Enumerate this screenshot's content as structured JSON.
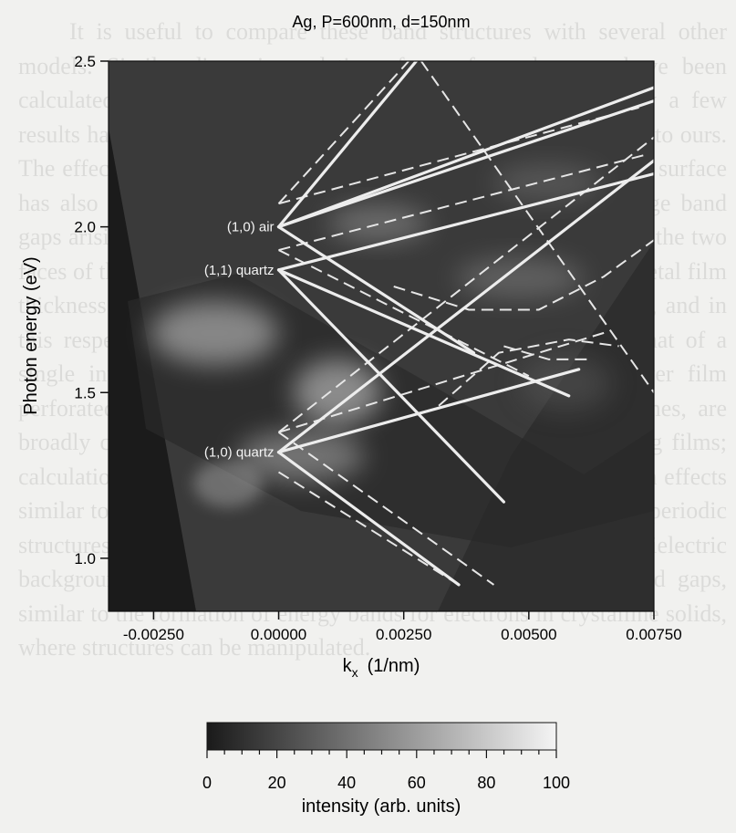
{
  "page_text": "It is useful to compare these band structures with several other models. Similar dispersion relations for surface plasmons have been calculated for metal gratings with sinusoidal profiles, but only a few results have been reported for the structures geometrically similar to ours. The effect of waveguide modes in dielectric media near the metal surface has also been suggested as supported by the observation of large band gaps arising from strong coupling between the plasmon modes on the two faces of the metal. We find that the gaps depend strongly on the metal film thickness (gaps are much smaller for thicker films, d = 300 nm), and in this respect the band structure is qualitatively different from that of a single interface. The computed transmission spectra of a silver film perforated with an array of holes, in different absorption regimes, are broadly consistent with those modelled with perfectly conducting films; calculations on arrays of gold wires and nanoparticles have shown effects similar to our findings. The concept of photonic band structure in periodic structures are presented at the top of many reviews. Periodic dielectric backgrounds lead to the formation of photonic bands and band gaps, similar to the formation of energy bands for electrons in crystalline solids, where structures can be manipulated.",
  "chart_data": {
    "type": "heatmap",
    "title": "Ag, P=600nm, d=150nm",
    "xlabel": "k",
    "xlabel_subscript": "x",
    "xlabel_unit": "(1/nm)",
    "ylabel": "Photon energy (eV)",
    "xlim": [
      -0.0034,
      0.0075
    ],
    "ylim": [
      0.84,
      2.5
    ],
    "x_ticks": [
      -0.0025,
      0.0,
      0.0025,
      0.005,
      0.0075
    ],
    "x_tick_labels": [
      "-0.00250",
      "0.00000",
      "0.00250",
      "0.00500",
      "0.00750"
    ],
    "y_ticks": [
      1.0,
      1.5,
      2.0,
      2.5
    ],
    "y_tick_labels": [
      "1.0",
      "1.5",
      "2.0",
      "2.5"
    ],
    "annotations": [
      {
        "text": "(1,0) air",
        "x": 0.0,
        "y": 2.0
      },
      {
        "text": "(1,1) quartz",
        "x": 0.0,
        "y": 1.87
      },
      {
        "text": "(1,0) quartz",
        "x": 0.0,
        "y": 1.32
      }
    ],
    "solid_lines": [
      [
        [
          0.0,
          2.0
        ],
        [
          0.00275,
          2.5
        ]
      ],
      [
        [
          0.0,
          2.0
        ],
        [
          0.0075,
          2.38
        ]
      ],
      [
        [
          0.0,
          2.0
        ],
        [
          0.0075,
          2.42
        ]
      ],
      [
        [
          0.0,
          2.0
        ],
        [
          0.0039,
          1.62
        ]
      ],
      [
        [
          0.0,
          1.87
        ],
        [
          0.0075,
          2.16
        ]
      ],
      [
        [
          0.0,
          1.87
        ],
        [
          0.0058,
          1.49
        ]
      ],
      [
        [
          0.0,
          1.87
        ],
        [
          0.0045,
          1.17
        ]
      ],
      [
        [
          0.0,
          1.32
        ],
        [
          0.0075,
          2.2
        ]
      ],
      [
        [
          0.0,
          1.32
        ],
        [
          0.006,
          1.57
        ]
      ],
      [
        [
          0.0,
          1.32
        ],
        [
          0.0036,
          0.92
        ]
      ]
    ],
    "dashed_lines": [
      [
        [
          0.0,
          2.07
        ],
        [
          0.0026,
          2.5
        ]
      ],
      [
        [
          0.0,
          2.07
        ],
        [
          0.0072,
          2.36
        ]
      ],
      [
        [
          0.0,
          1.93
        ],
        [
          0.0074,
          2.22
        ]
      ],
      [
        [
          0.0,
          1.93
        ],
        [
          0.005,
          1.55
        ]
      ],
      [
        [
          0.0,
          1.38
        ],
        [
          0.0075,
          2.27
        ]
      ],
      [
        [
          0.0,
          1.38
        ],
        [
          0.0065,
          1.68
        ]
      ],
      [
        [
          0.0,
          1.38
        ],
        [
          0.0043,
          0.92
        ]
      ],
      [
        [
          0.0,
          1.26
        ],
        [
          0.0036,
          0.92
        ]
      ],
      [
        [
          0.00285,
          2.5
        ],
        [
          0.0075,
          1.5
        ]
      ]
    ],
    "dashed_curves": [
      [
        [
          0.0023,
          1.82
        ],
        [
          0.0038,
          1.75
        ],
        [
          0.0052,
          1.75
        ],
        [
          0.0065,
          1.85
        ],
        [
          0.0075,
          1.96
        ]
      ],
      [
        [
          0.0032,
          1.46
        ],
        [
          0.0044,
          1.62
        ],
        [
          0.0058,
          1.66
        ],
        [
          0.0068,
          1.64
        ]
      ],
      [
        [
          0.0045,
          1.64
        ],
        [
          0.0054,
          1.6
        ],
        [
          0.0062,
          1.6
        ]
      ]
    ],
    "colorbar": {
      "label": "intensity (arb. units)",
      "range": [
        0,
        100
      ],
      "ticks": [
        0,
        20,
        40,
        60,
        80,
        100
      ],
      "tick_labels": [
        "0",
        "20",
        "40",
        "60",
        "80",
        "100"
      ]
    }
  }
}
